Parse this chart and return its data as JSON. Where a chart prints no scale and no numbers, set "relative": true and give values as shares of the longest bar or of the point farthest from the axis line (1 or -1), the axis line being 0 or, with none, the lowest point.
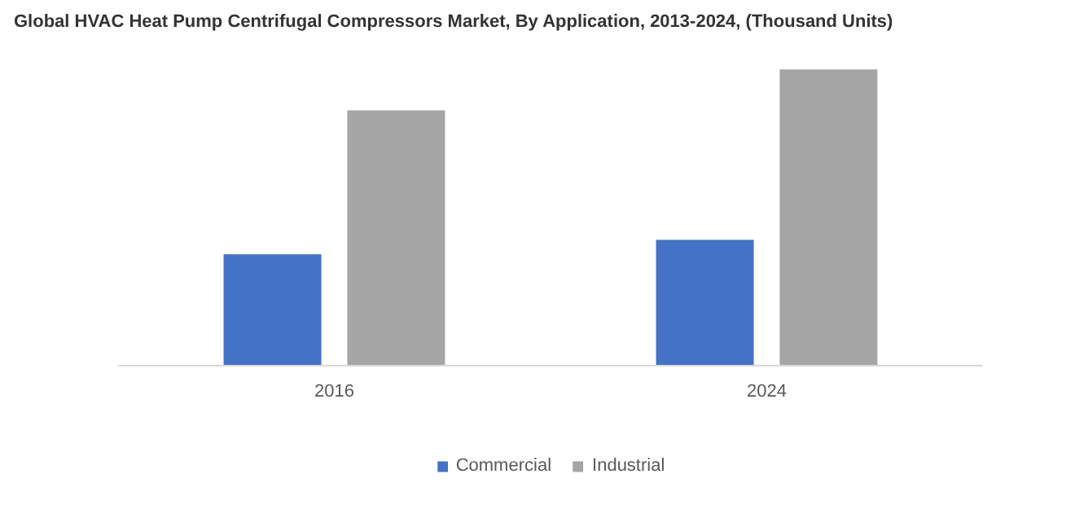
{
  "chart_data": {
    "type": "bar",
    "title": "Global HVAC Heat Pump Centrifugal Compressors Market, By Application, 2013-2024, (Thousand Units)",
    "categories": [
      "2016",
      "2024"
    ],
    "relative": true,
    "legend": "bottom",
    "series": [
      {
        "name": "Commercial",
        "color": "#4472c4",
        "values": [
          0.376,
          0.425
        ]
      },
      {
        "name": "Industrial",
        "color": "#a5a5a5",
        "values": [
          0.862,
          1
        ]
      }
    ]
  }
}
